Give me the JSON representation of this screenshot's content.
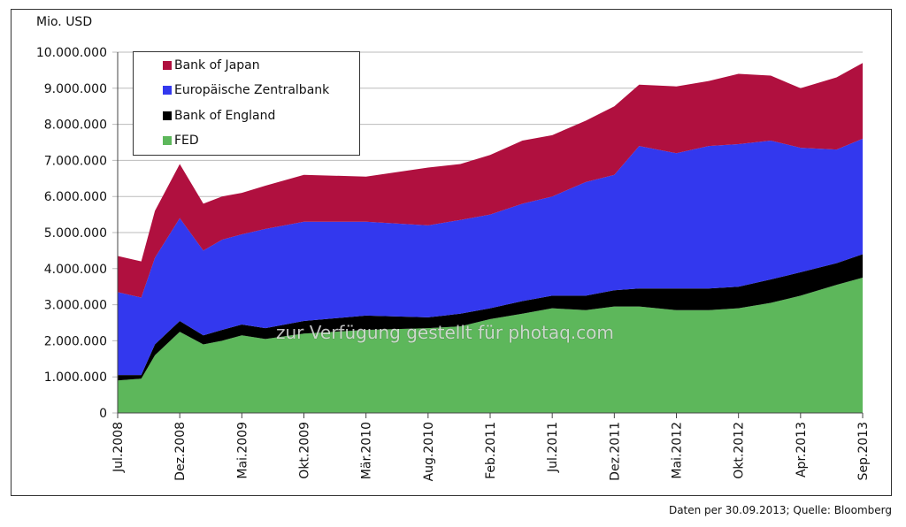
{
  "chart_data": {
    "type": "area",
    "stacked": true,
    "ylabel": "Mio. USD",
    "ylim": [
      0,
      10000000
    ],
    "yticks": [
      0,
      1000000,
      2000000,
      3000000,
      4000000,
      5000000,
      6000000,
      7000000,
      8000000,
      9000000,
      10000000
    ],
    "ytick_labels": [
      "0",
      "1.000.000",
      "2.000.000",
      "3.000.000",
      "4.000.000",
      "5.000.000",
      "6.000.000",
      "7.000.000",
      "8.000.000",
      "9.000.000",
      "10.000.000"
    ],
    "xlim": [
      0,
      60
    ],
    "xticks": [
      0,
      5,
      10,
      15,
      20,
      25,
      30,
      35,
      40,
      45,
      50,
      55,
      60
    ],
    "xtick_labels": [
      "Jul.2008",
      "Dez.2008",
      "Mai.2009",
      "Okt.2009",
      "Mär.2010",
      "Aug.2010",
      "Feb.2011",
      "Jul.2011",
      "Dez.2011",
      "Mai.2012",
      "Okt.2012",
      "Apr.2013",
      "Sep.2013"
    ],
    "x": [
      0,
      1.9,
      3,
      5,
      6.9,
      8.4,
      10,
      11.9,
      15,
      20,
      25,
      27.6,
      30,
      32.6,
      35,
      37.7,
      40,
      42,
      45,
      47.6,
      50,
      52.6,
      55,
      57.9,
      60
    ],
    "series": [
      {
        "name": "FED",
        "color": "#5db75b",
        "values": [
          0.9,
          0.95,
          1.6,
          2.25,
          1.9,
          2.0,
          2.15,
          2.05,
          2.2,
          2.3,
          2.35,
          2.4,
          2.6,
          2.75,
          2.9,
          2.85,
          2.95,
          2.95,
          2.85,
          2.85,
          2.9,
          3.05,
          3.25,
          3.55,
          3.75
        ]
      },
      {
        "name": "Bank of England",
        "color": "#000000",
        "values": [
          0.15,
          0.1,
          0.3,
          0.3,
          0.25,
          0.3,
          0.3,
          0.3,
          0.35,
          0.4,
          0.3,
          0.35,
          0.3,
          0.35,
          0.35,
          0.4,
          0.45,
          0.5,
          0.6,
          0.6,
          0.6,
          0.65,
          0.65,
          0.6,
          0.65
        ]
      },
      {
        "name": "Europäische Zentralbank",
        "color": "#3338ee",
        "values": [
          2.3,
          2.15,
          2.4,
          2.85,
          2.35,
          2.5,
          2.5,
          2.75,
          2.75,
          2.6,
          2.55,
          2.6,
          2.6,
          2.7,
          2.75,
          3.15,
          3.2,
          3.95,
          3.75,
          3.95,
          3.95,
          3.85,
          3.45,
          3.15,
          3.2
        ]
      },
      {
        "name": "Bank of Japan",
        "color": "#b0103f",
        "values": [
          1.0,
          1.0,
          1.3,
          1.5,
          1.3,
          1.2,
          1.15,
          1.2,
          1.3,
          1.25,
          1.6,
          1.55,
          1.65,
          1.75,
          1.7,
          1.7,
          1.9,
          1.7,
          1.85,
          1.8,
          1.95,
          1.8,
          1.65,
          2.0,
          2.1
        ]
      }
    ],
    "value_unit_note": "series values in millions of Mio. USD (i.e. x1.000.000)",
    "legend": {
      "placement": "top-left",
      "entries": [
        "Bank of Japan",
        "Europäische Zentralbank",
        "Bank of England",
        "FED"
      ]
    },
    "grid": true
  },
  "watermark": "zur Verfügung gestellt für photaq.com",
  "footer": "Daten per 30.09.2013; Quelle: Bloomberg"
}
